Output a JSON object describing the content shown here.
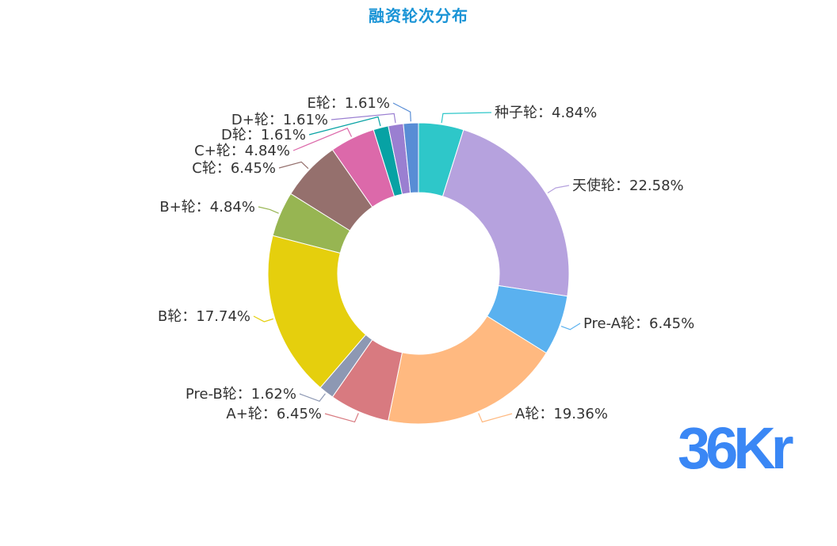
{
  "title": "融资轮次分布",
  "logo_text": "36Kr",
  "colors": {
    "title": "#1a94d6",
    "logo": "#3a87f5"
  },
  "chart_data": {
    "type": "pie",
    "style": "donut",
    "title": "融资轮次分布",
    "series": [
      {
        "name": "种子轮",
        "value": 4.84,
        "color": "#2ec7c9"
      },
      {
        "name": "天使轮",
        "value": 22.58,
        "color": "#b6a2de"
      },
      {
        "name": "Pre-A轮",
        "value": 6.45,
        "color": "#5ab1ef"
      },
      {
        "name": "A轮",
        "value": 19.36,
        "color": "#ffb980"
      },
      {
        "name": "A+轮",
        "value": 6.45,
        "color": "#d87a80"
      },
      {
        "name": "Pre-B轮",
        "value": 1.62,
        "color": "#8d98b3"
      },
      {
        "name": "B轮",
        "value": 17.74,
        "color": "#e5cf0d"
      },
      {
        "name": "B+轮",
        "value": 4.84,
        "color": "#97b552"
      },
      {
        "name": "C轮",
        "value": 6.45,
        "color": "#95706d"
      },
      {
        "name": "C+轮",
        "value": 4.84,
        "color": "#dc69aa"
      },
      {
        "name": "D轮",
        "value": 1.61,
        "color": "#07a2a4"
      },
      {
        "name": "D+轮",
        "value": 1.61,
        "color": "#9a7fd1"
      },
      {
        "name": "E轮",
        "value": 1.61,
        "color": "#588dd5"
      }
    ],
    "labels": [
      "种子轮：4.84%",
      "天使轮：22.58%",
      "Pre-A轮：6.45%",
      "A轮：19.36%",
      "A+轮：6.45%",
      "Pre-B轮：1.62%",
      "B轮：17.74%",
      "B+轮：4.84%",
      "C轮：6.45%",
      "C+轮：4.84%",
      "D轮：1.61%",
      "D+轮：1.61%",
      "E轮：1.61%"
    ]
  }
}
